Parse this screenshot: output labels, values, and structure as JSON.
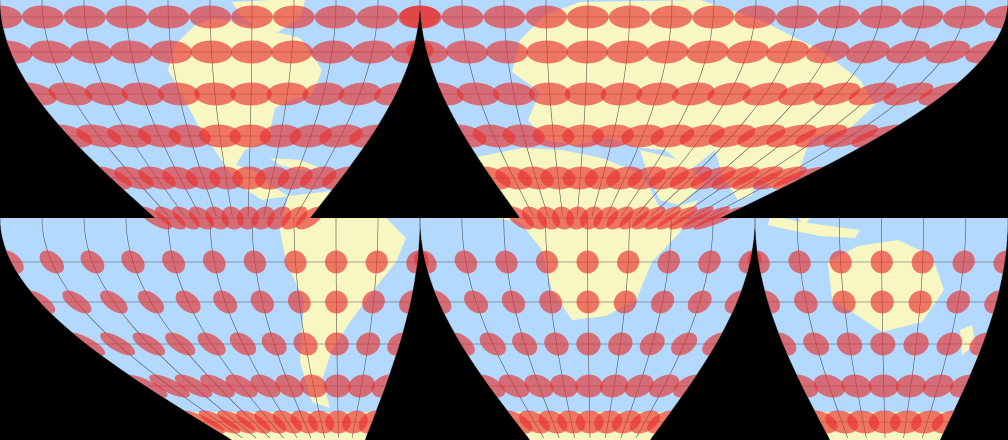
{
  "map": {
    "projection_style": "interrupted",
    "colors": {
      "background": "#000000",
      "ocean": "#b3d9ff",
      "land": "#f8f7c2",
      "graticule": "#555555",
      "indicatrix": "#e8332f"
    }
  }
}
